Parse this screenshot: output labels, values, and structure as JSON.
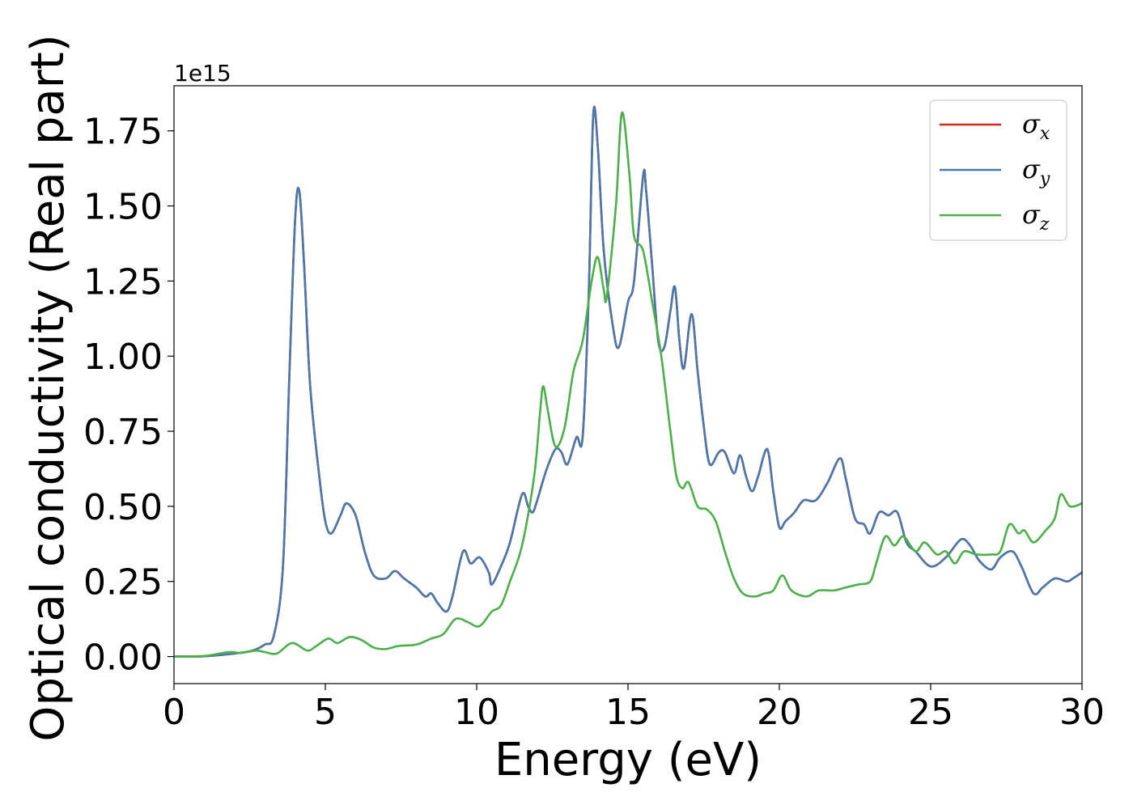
{
  "chart_data": {
    "type": "line",
    "xlabel": "Energy (eV)",
    "ylabel": "Optical conductivity (Real part)",
    "y_offset_label": "1e15",
    "xlim": [
      0,
      30
    ],
    "ylim": [
      -0.09,
      1.9
    ],
    "x_ticks": [
      0,
      5,
      10,
      15,
      20,
      25,
      30
    ],
    "x_tick_labels": [
      "0",
      "5",
      "10",
      "15",
      "20",
      "25",
      "30"
    ],
    "y_ticks": [
      0.0,
      0.25,
      0.5,
      0.75,
      1.0,
      1.25,
      1.5,
      1.75
    ],
    "y_tick_labels": [
      "0.00",
      "0.25",
      "0.50",
      "0.75",
      "1.00",
      "1.25",
      "1.50",
      "1.75"
    ],
    "grid": false,
    "legend_position": "top-right",
    "series": [
      {
        "name": "σx",
        "legend_base": "σ",
        "legend_sub": "x",
        "color": "#d62728",
        "points": [
          [
            0,
            0.0
          ],
          [
            1,
            0.001
          ],
          [
            2,
            0.01
          ],
          [
            2.6,
            0.02
          ],
          [
            3,
            0.04
          ],
          [
            3.3,
            0.07
          ],
          [
            3.6,
            0.3
          ],
          [
            3.8,
            0.9
          ],
          [
            4,
            1.45
          ],
          [
            4.14,
            1.55
          ],
          [
            4.3,
            1.3
          ],
          [
            4.5,
            0.9
          ],
          [
            4.8,
            0.6
          ],
          [
            5,
            0.45
          ],
          [
            5.2,
            0.41
          ],
          [
            5.5,
            0.47
          ],
          [
            5.7,
            0.51
          ],
          [
            6,
            0.47
          ],
          [
            6.3,
            0.35
          ],
          [
            6.6,
            0.27
          ],
          [
            7,
            0.26
          ],
          [
            7.3,
            0.285
          ],
          [
            7.6,
            0.26
          ],
          [
            8,
            0.23
          ],
          [
            8.3,
            0.2
          ],
          [
            8.5,
            0.21
          ],
          [
            8.7,
            0.18
          ],
          [
            9,
            0.15
          ],
          [
            9.2,
            0.2
          ],
          [
            9.55,
            0.35
          ],
          [
            9.8,
            0.31
          ],
          [
            10.1,
            0.33
          ],
          [
            10.4,
            0.28
          ],
          [
            10.5,
            0.24
          ],
          [
            10.8,
            0.3
          ],
          [
            11.1,
            0.38
          ],
          [
            11.5,
            0.54
          ],
          [
            11.7,
            0.5
          ],
          [
            11.85,
            0.48
          ],
          [
            12,
            0.52
          ],
          [
            12.3,
            0.62
          ],
          [
            12.6,
            0.69
          ],
          [
            12.8,
            0.68
          ],
          [
            13,
            0.64
          ],
          [
            13.3,
            0.73
          ],
          [
            13.5,
            0.73
          ],
          [
            13.7,
            1.2
          ],
          [
            13.85,
            1.8
          ],
          [
            14,
            1.7
          ],
          [
            14.2,
            1.35
          ],
          [
            14.5,
            1.1
          ],
          [
            14.7,
            1.03
          ],
          [
            15,
            1.18
          ],
          [
            15.2,
            1.25
          ],
          [
            15.5,
            1.6
          ],
          [
            15.6,
            1.55
          ],
          [
            15.8,
            1.3
          ],
          [
            16,
            1.05
          ],
          [
            16.2,
            1.03
          ],
          [
            16.4,
            1.15
          ],
          [
            16.55,
            1.23
          ],
          [
            16.7,
            1.05
          ],
          [
            16.85,
            0.96
          ],
          [
            17.1,
            1.14
          ],
          [
            17.3,
            0.95
          ],
          [
            17.5,
            0.77
          ],
          [
            17.7,
            0.64
          ],
          [
            18,
            0.68
          ],
          [
            18.2,
            0.68
          ],
          [
            18.5,
            0.61
          ],
          [
            18.7,
            0.67
          ],
          [
            18.9,
            0.6
          ],
          [
            19.1,
            0.55
          ],
          [
            19.3,
            0.6
          ],
          [
            19.6,
            0.69
          ],
          [
            19.8,
            0.55
          ],
          [
            20,
            0.43
          ],
          [
            20.2,
            0.45
          ],
          [
            20.5,
            0.48
          ],
          [
            20.8,
            0.52
          ],
          [
            21.2,
            0.52
          ],
          [
            21.6,
            0.58
          ],
          [
            22,
            0.66
          ],
          [
            22.2,
            0.59
          ],
          [
            22.5,
            0.46
          ],
          [
            22.8,
            0.44
          ],
          [
            23,
            0.41
          ],
          [
            23.3,
            0.48
          ],
          [
            23.6,
            0.47
          ],
          [
            23.9,
            0.48
          ],
          [
            24.2,
            0.38
          ],
          [
            24.5,
            0.35
          ],
          [
            25,
            0.3
          ],
          [
            25.5,
            0.33
          ],
          [
            26,
            0.39
          ],
          [
            26.3,
            0.37
          ],
          [
            26.6,
            0.32
          ],
          [
            27,
            0.29
          ],
          [
            27.3,
            0.33
          ],
          [
            27.7,
            0.35
          ],
          [
            28,
            0.3
          ],
          [
            28.4,
            0.21
          ],
          [
            28.7,
            0.23
          ],
          [
            29.1,
            0.26
          ],
          [
            29.5,
            0.25
          ],
          [
            29.7,
            0.26
          ],
          [
            30,
            0.28
          ]
        ]
      },
      {
        "name": "σy",
        "legend_base": "σ",
        "legend_sub": "y",
        "color": "#4a78aa",
        "points": [
          [
            0,
            0.0
          ],
          [
            1,
            0.001
          ],
          [
            2,
            0.01
          ],
          [
            2.6,
            0.02
          ],
          [
            3,
            0.04
          ],
          [
            3.3,
            0.07
          ],
          [
            3.6,
            0.3
          ],
          [
            3.8,
            0.9
          ],
          [
            4,
            1.45
          ],
          [
            4.14,
            1.55
          ],
          [
            4.3,
            1.3
          ],
          [
            4.5,
            0.9
          ],
          [
            4.8,
            0.6
          ],
          [
            5,
            0.45
          ],
          [
            5.2,
            0.41
          ],
          [
            5.5,
            0.47
          ],
          [
            5.7,
            0.51
          ],
          [
            6,
            0.47
          ],
          [
            6.3,
            0.35
          ],
          [
            6.6,
            0.27
          ],
          [
            7,
            0.26
          ],
          [
            7.3,
            0.285
          ],
          [
            7.6,
            0.26
          ],
          [
            8,
            0.23
          ],
          [
            8.3,
            0.2
          ],
          [
            8.5,
            0.21
          ],
          [
            8.7,
            0.18
          ],
          [
            9,
            0.15
          ],
          [
            9.2,
            0.2
          ],
          [
            9.55,
            0.35
          ],
          [
            9.8,
            0.31
          ],
          [
            10.1,
            0.33
          ],
          [
            10.4,
            0.28
          ],
          [
            10.5,
            0.24
          ],
          [
            10.8,
            0.3
          ],
          [
            11.1,
            0.38
          ],
          [
            11.5,
            0.54
          ],
          [
            11.7,
            0.5
          ],
          [
            11.85,
            0.48
          ],
          [
            12,
            0.52
          ],
          [
            12.3,
            0.62
          ],
          [
            12.6,
            0.69
          ],
          [
            12.8,
            0.68
          ],
          [
            13,
            0.64
          ],
          [
            13.3,
            0.73
          ],
          [
            13.5,
            0.73
          ],
          [
            13.7,
            1.2
          ],
          [
            13.85,
            1.8
          ],
          [
            14,
            1.7
          ],
          [
            14.2,
            1.35
          ],
          [
            14.5,
            1.1
          ],
          [
            14.7,
            1.03
          ],
          [
            15,
            1.18
          ],
          [
            15.2,
            1.25
          ],
          [
            15.5,
            1.6
          ],
          [
            15.6,
            1.55
          ],
          [
            15.8,
            1.3
          ],
          [
            16,
            1.05
          ],
          [
            16.2,
            1.03
          ],
          [
            16.4,
            1.15
          ],
          [
            16.55,
            1.23
          ],
          [
            16.7,
            1.05
          ],
          [
            16.85,
            0.96
          ],
          [
            17.1,
            1.14
          ],
          [
            17.3,
            0.95
          ],
          [
            17.5,
            0.77
          ],
          [
            17.7,
            0.64
          ],
          [
            18,
            0.68
          ],
          [
            18.2,
            0.68
          ],
          [
            18.5,
            0.61
          ],
          [
            18.7,
            0.67
          ],
          [
            18.9,
            0.6
          ],
          [
            19.1,
            0.55
          ],
          [
            19.3,
            0.6
          ],
          [
            19.6,
            0.69
          ],
          [
            19.8,
            0.55
          ],
          [
            20,
            0.43
          ],
          [
            20.2,
            0.45
          ],
          [
            20.5,
            0.48
          ],
          [
            20.8,
            0.52
          ],
          [
            21.2,
            0.52
          ],
          [
            21.6,
            0.58
          ],
          [
            22,
            0.66
          ],
          [
            22.2,
            0.59
          ],
          [
            22.5,
            0.46
          ],
          [
            22.8,
            0.44
          ],
          [
            23,
            0.41
          ],
          [
            23.3,
            0.48
          ],
          [
            23.6,
            0.47
          ],
          [
            23.9,
            0.48
          ],
          [
            24.2,
            0.38
          ],
          [
            24.5,
            0.35
          ],
          [
            25,
            0.3
          ],
          [
            25.5,
            0.33
          ],
          [
            26,
            0.39
          ],
          [
            26.3,
            0.37
          ],
          [
            26.6,
            0.32
          ],
          [
            27,
            0.29
          ],
          [
            27.3,
            0.33
          ],
          [
            27.7,
            0.35
          ],
          [
            28,
            0.3
          ],
          [
            28.4,
            0.21
          ],
          [
            28.7,
            0.23
          ],
          [
            29.1,
            0.26
          ],
          [
            29.5,
            0.25
          ],
          [
            29.7,
            0.26
          ],
          [
            30,
            0.28
          ]
        ]
      },
      {
        "name": "σz",
        "legend_base": "σ",
        "legend_sub": "z",
        "color": "#4daf4a",
        "points": [
          [
            0,
            0.0
          ],
          [
            1,
            0.002
          ],
          [
            1.8,
            0.015
          ],
          [
            2.2,
            0.012
          ],
          [
            2.7,
            0.02
          ],
          [
            3,
            0.015
          ],
          [
            3.4,
            0.01
          ],
          [
            3.9,
            0.045
          ],
          [
            4.4,
            0.02
          ],
          [
            4.7,
            0.035
          ],
          [
            5.1,
            0.06
          ],
          [
            5.4,
            0.045
          ],
          [
            5.8,
            0.065
          ],
          [
            6.2,
            0.055
          ],
          [
            6.6,
            0.03
          ],
          [
            7,
            0.025
          ],
          [
            7.4,
            0.035
          ],
          [
            8,
            0.04
          ],
          [
            8.5,
            0.06
          ],
          [
            8.9,
            0.075
          ],
          [
            9.3,
            0.125
          ],
          [
            9.7,
            0.115
          ],
          [
            10,
            0.1
          ],
          [
            10.2,
            0.11
          ],
          [
            10.5,
            0.15
          ],
          [
            10.8,
            0.17
          ],
          [
            11.1,
            0.25
          ],
          [
            11.5,
            0.37
          ],
          [
            11.9,
            0.6
          ],
          [
            12.1,
            0.82
          ],
          [
            12.2,
            0.9
          ],
          [
            12.35,
            0.82
          ],
          [
            12.6,
            0.7
          ],
          [
            12.9,
            0.76
          ],
          [
            13.2,
            0.95
          ],
          [
            13.5,
            1.05
          ],
          [
            13.8,
            1.25
          ],
          [
            14,
            1.33
          ],
          [
            14.2,
            1.22
          ],
          [
            14.3,
            1.2
          ],
          [
            14.6,
            1.5
          ],
          [
            14.8,
            1.81
          ],
          [
            15.05,
            1.6
          ],
          [
            15.2,
            1.4
          ],
          [
            15.5,
            1.35
          ],
          [
            15.8,
            1.18
          ],
          [
            16.1,
            1.0
          ],
          [
            16.4,
            0.75
          ],
          [
            16.6,
            0.6
          ],
          [
            16.8,
            0.56
          ],
          [
            17,
            0.58
          ],
          [
            17.3,
            0.5
          ],
          [
            17.6,
            0.49
          ],
          [
            17.9,
            0.45
          ],
          [
            18.2,
            0.35
          ],
          [
            18.5,
            0.26
          ],
          [
            18.8,
            0.21
          ],
          [
            19.2,
            0.2
          ],
          [
            19.5,
            0.21
          ],
          [
            19.8,
            0.22
          ],
          [
            20.1,
            0.27
          ],
          [
            20.4,
            0.22
          ],
          [
            20.9,
            0.2
          ],
          [
            21.3,
            0.22
          ],
          [
            21.8,
            0.22
          ],
          [
            22.2,
            0.23
          ],
          [
            22.6,
            0.24
          ],
          [
            23,
            0.25
          ],
          [
            23.2,
            0.31
          ],
          [
            23.5,
            0.4
          ],
          [
            23.8,
            0.37
          ],
          [
            24.1,
            0.4
          ],
          [
            24.5,
            0.35
          ],
          [
            24.8,
            0.38
          ],
          [
            25.2,
            0.34
          ],
          [
            25.5,
            0.35
          ],
          [
            25.8,
            0.31
          ],
          [
            26.1,
            0.35
          ],
          [
            26.5,
            0.34
          ],
          [
            27,
            0.34
          ],
          [
            27.3,
            0.35
          ],
          [
            27.6,
            0.44
          ],
          [
            27.9,
            0.41
          ],
          [
            28.1,
            0.42
          ],
          [
            28.4,
            0.38
          ],
          [
            28.8,
            0.42
          ],
          [
            29.1,
            0.46
          ],
          [
            29.3,
            0.54
          ],
          [
            29.6,
            0.5
          ],
          [
            30,
            0.51
          ]
        ]
      }
    ]
  }
}
